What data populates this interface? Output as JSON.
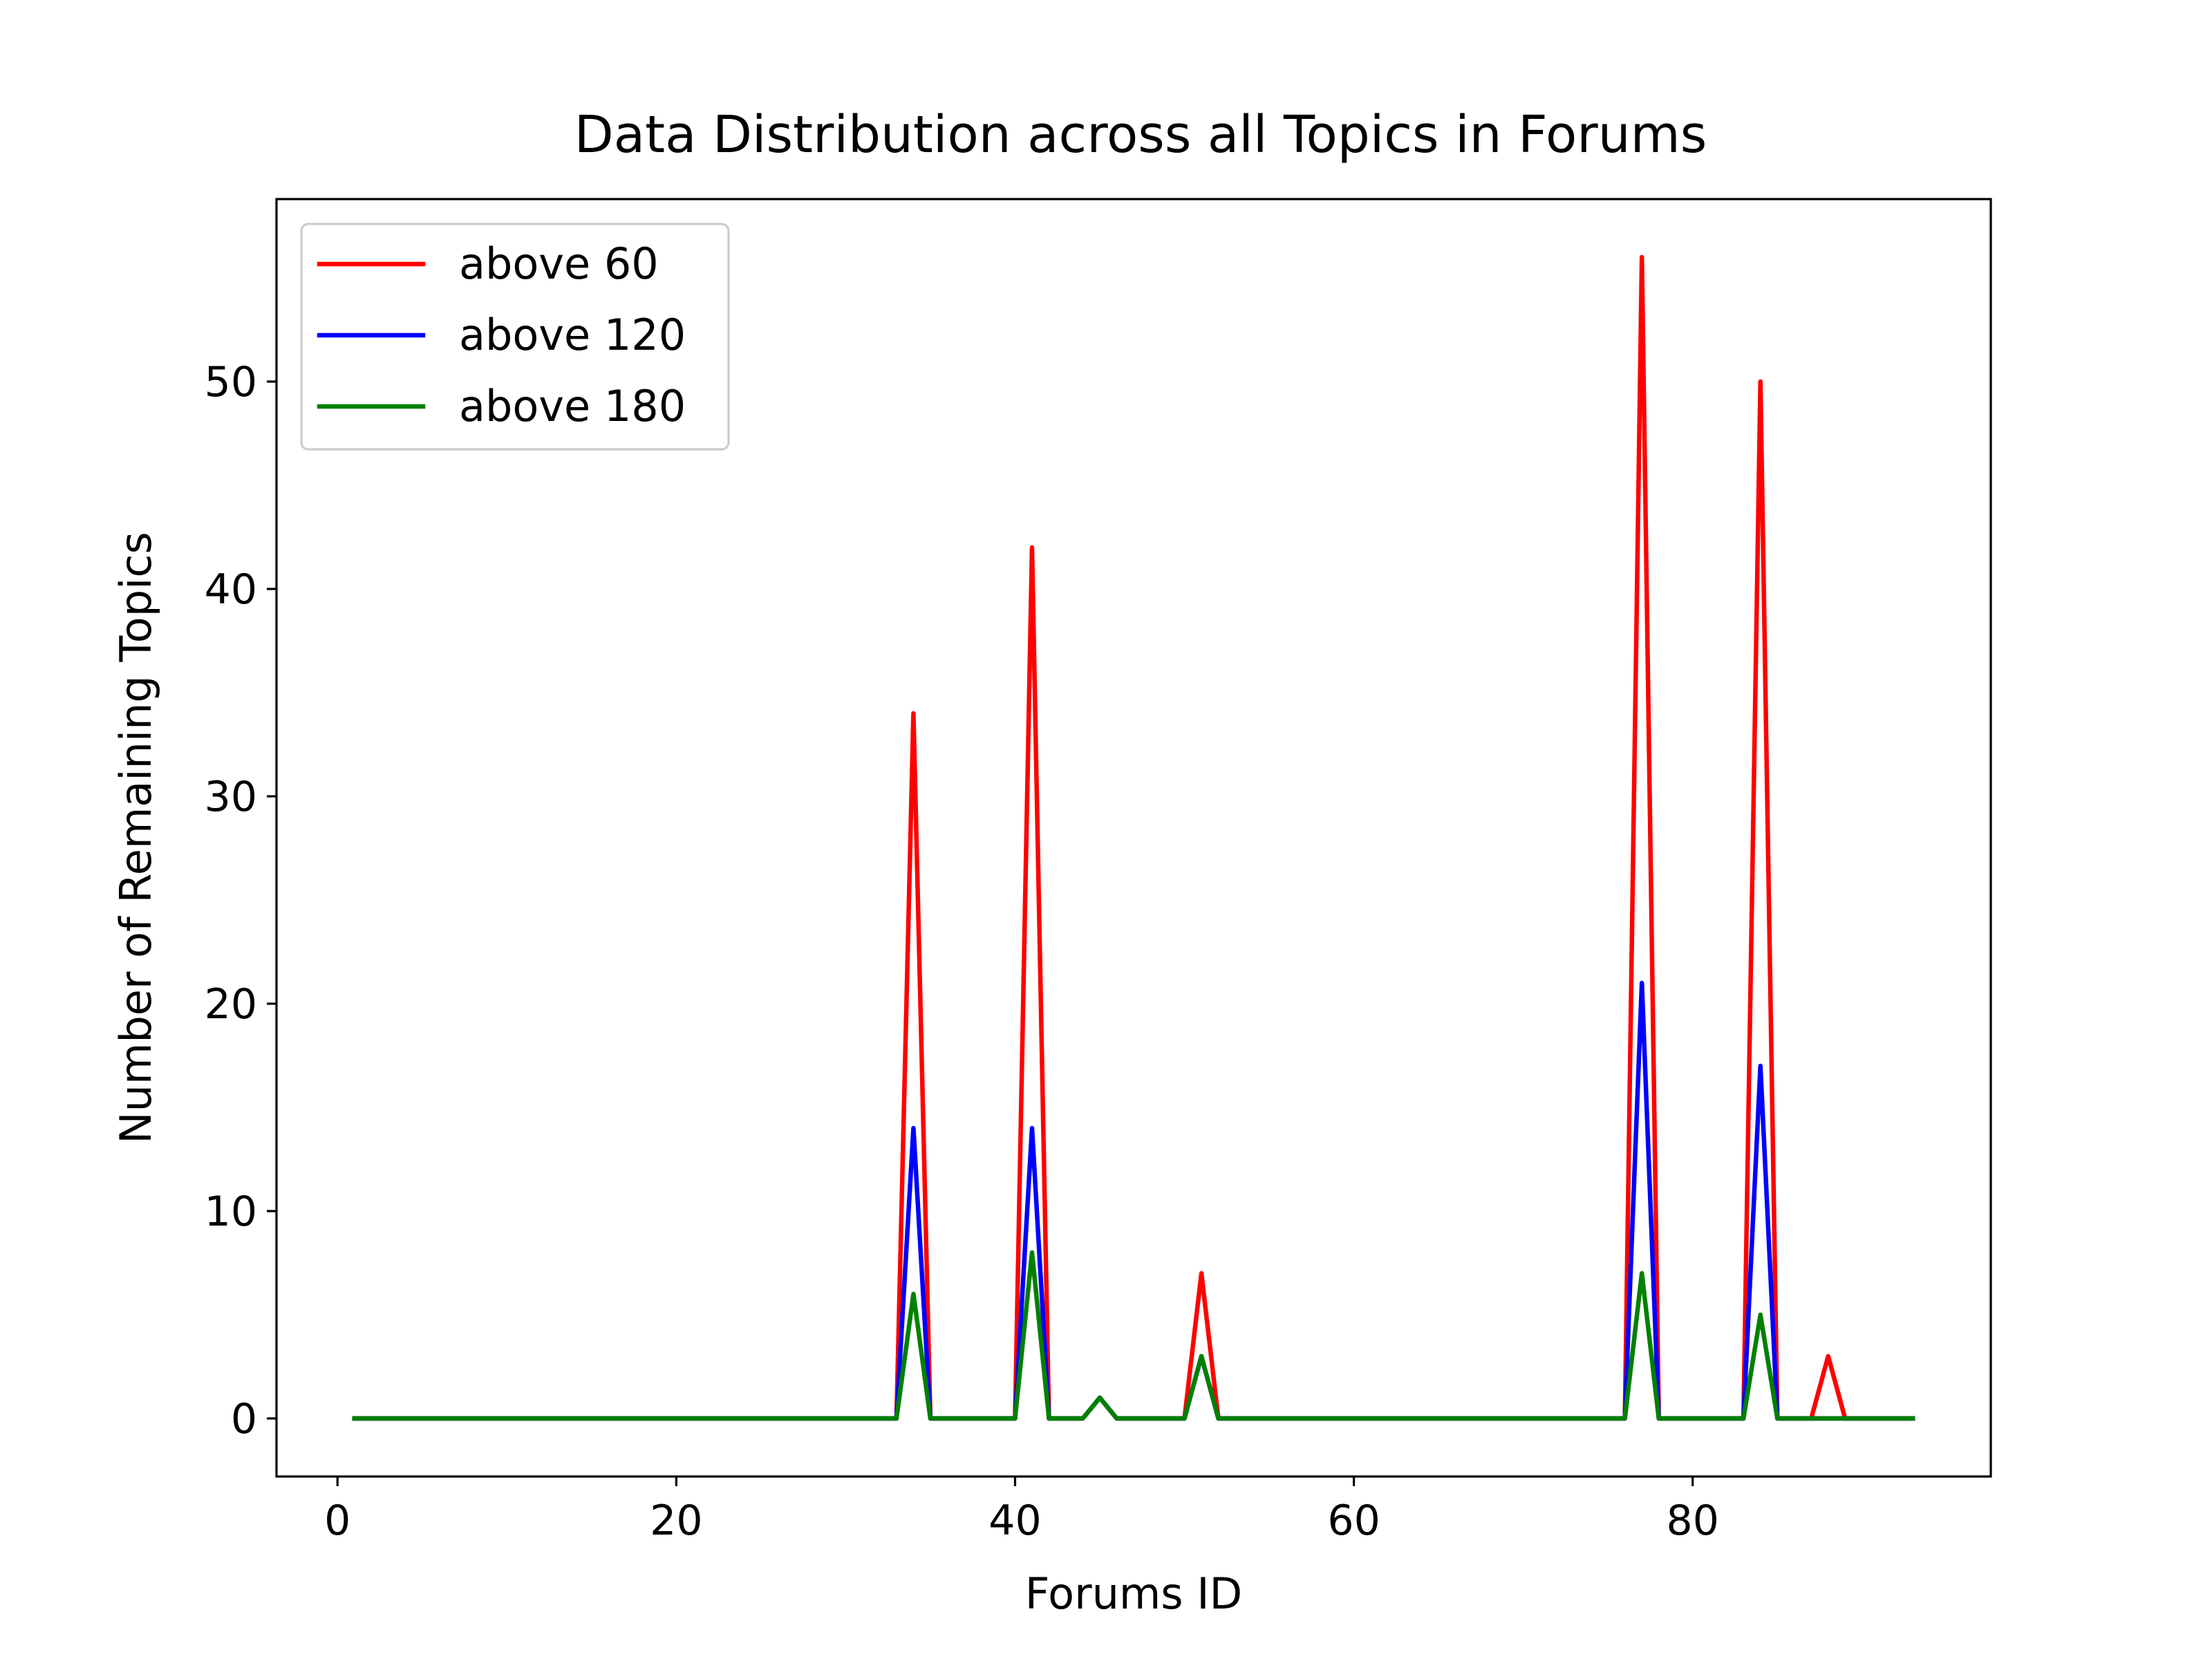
{
  "chart_data": {
    "type": "line",
    "title": "Data Distribution across all Topics in Forums",
    "xlabel": "Forums ID",
    "ylabel": "Number of Remaining Topics",
    "xlim": [
      -3.6,
      97.6
    ],
    "ylim": [
      -2.8,
      58.8
    ],
    "xticks": [
      0,
      20,
      40,
      60,
      80
    ],
    "yticks": [
      0,
      10,
      20,
      30,
      40,
      50
    ],
    "grid": false,
    "legend_position": "upper-left",
    "series": [
      {
        "name": "above 60",
        "color": "#ff0000",
        "points": [
          [
            1,
            0
          ],
          [
            33,
            0
          ],
          [
            34,
            34
          ],
          [
            35,
            0
          ],
          [
            40,
            0
          ],
          [
            41,
            42
          ],
          [
            42,
            0
          ],
          [
            44,
            0
          ],
          [
            45,
            1
          ],
          [
            46,
            0
          ],
          [
            50,
            0
          ],
          [
            51,
            7
          ],
          [
            52,
            0
          ],
          [
            76,
            0
          ],
          [
            77,
            56
          ],
          [
            78,
            0
          ],
          [
            83,
            0
          ],
          [
            84,
            50
          ],
          [
            85,
            0
          ],
          [
            87,
            0
          ],
          [
            88,
            3
          ],
          [
            89,
            0
          ],
          [
            93,
            0
          ]
        ]
      },
      {
        "name": "above 120",
        "color": "#0000ff",
        "points": [
          [
            1,
            0
          ],
          [
            33,
            0
          ],
          [
            34,
            14
          ],
          [
            35,
            0
          ],
          [
            40,
            0
          ],
          [
            41,
            14
          ],
          [
            42,
            0
          ],
          [
            44,
            0
          ],
          [
            45,
            1
          ],
          [
            46,
            0
          ],
          [
            50,
            0
          ],
          [
            51,
            3
          ],
          [
            52,
            0
          ],
          [
            76,
            0
          ],
          [
            77,
            21
          ],
          [
            78,
            0
          ],
          [
            83,
            0
          ],
          [
            84,
            17
          ],
          [
            85,
            0
          ],
          [
            93,
            0
          ]
        ]
      },
      {
        "name": "above 180",
        "color": "#008000",
        "points": [
          [
            1,
            0
          ],
          [
            33,
            0
          ],
          [
            34,
            6
          ],
          [
            35,
            0
          ],
          [
            40,
            0
          ],
          [
            41,
            8
          ],
          [
            42,
            0
          ],
          [
            44,
            0
          ],
          [
            45,
            1
          ],
          [
            46,
            0
          ],
          [
            50,
            0
          ],
          [
            51,
            3
          ],
          [
            52,
            0
          ],
          [
            76,
            0
          ],
          [
            77,
            7
          ],
          [
            78,
            0
          ],
          [
            83,
            0
          ],
          [
            84,
            5
          ],
          [
            85,
            0
          ],
          [
            93,
            0
          ]
        ]
      }
    ]
  }
}
